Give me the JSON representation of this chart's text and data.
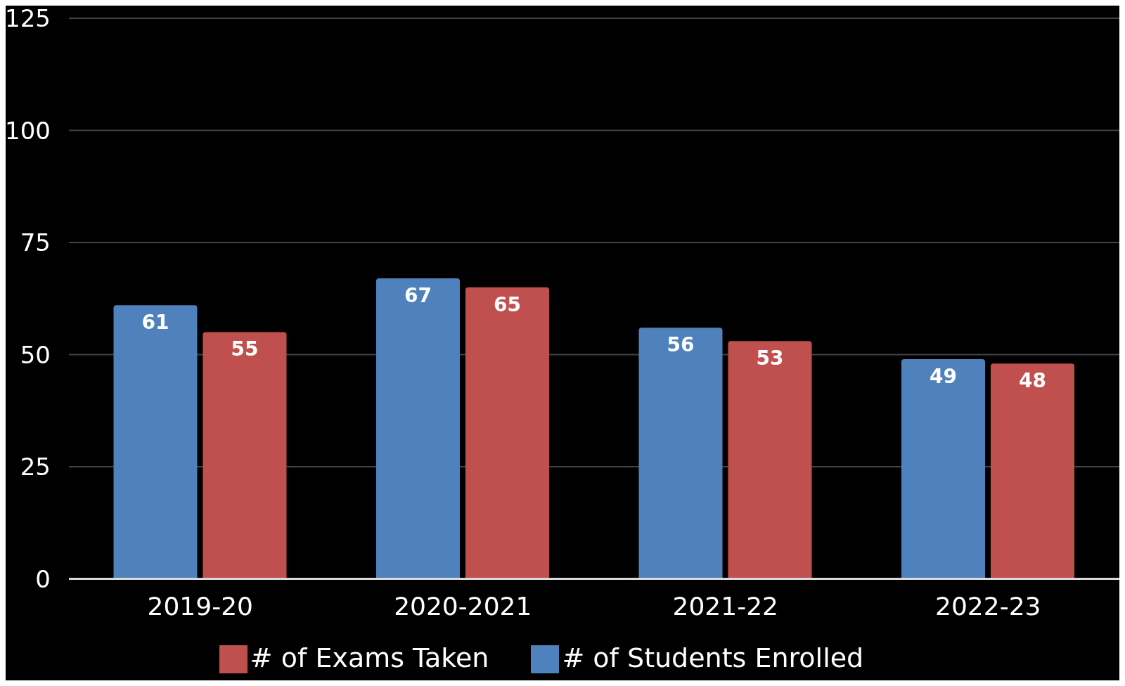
{
  "chart_data": {
    "type": "bar",
    "categories": [
      "2019-20",
      "2020-2021",
      "2021-22",
      "2022-23"
    ],
    "series": [
      {
        "name": "# of Students Enrolled",
        "color": "#4f81bd",
        "values": [
          61,
          67,
          56,
          49
        ]
      },
      {
        "name": "# of Exams Taken",
        "color": "#c0504d",
        "values": [
          55,
          65,
          53,
          48
        ]
      }
    ],
    "ylim": [
      0,
      125
    ],
    "yticks": [
      0,
      25,
      50,
      75,
      100,
      125
    ],
    "grid": "y",
    "legend": "bottom",
    "data_labels": true
  }
}
